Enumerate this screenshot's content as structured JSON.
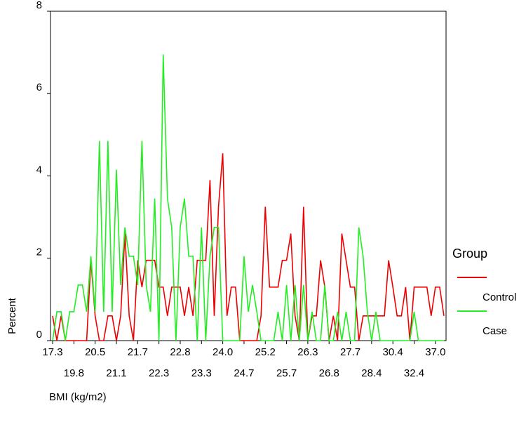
{
  "chart_data": {
    "type": "line",
    "x_label": "BMI (kg/m2)",
    "y_label": "Percent",
    "legend_title": "Group",
    "legend": "right",
    "categories": [
      "17.3",
      null,
      null,
      null,
      null,
      "19.8",
      null,
      null,
      null,
      null,
      "20.5",
      null,
      null,
      null,
      null,
      "21.1",
      null,
      null,
      null,
      null,
      "21.7",
      null,
      null,
      null,
      null,
      "22.3",
      null,
      null,
      null,
      null,
      "22.8",
      null,
      null,
      null,
      null,
      "23.3",
      null,
      null,
      null,
      null,
      "24.0",
      null,
      null,
      null,
      null,
      "24.7",
      null,
      null,
      null,
      null,
      "25.2",
      null,
      null,
      null,
      null,
      "25.7",
      null,
      null,
      null,
      null,
      "26.3",
      null,
      null,
      null,
      null,
      "26.8",
      null,
      null,
      null,
      null,
      "27.7",
      null,
      null,
      null,
      null,
      "28.4",
      null,
      null,
      null,
      null,
      "30.4",
      null,
      null,
      null,
      null,
      "32.4",
      null,
      null,
      null,
      null,
      "37.0",
      null,
      null
    ],
    "series": [
      {
        "name": "Control",
        "color": "#ee0000",
        "values": [
          0.6,
          0,
          0.6,
          0,
          0,
          0,
          0,
          0,
          0,
          1.95,
          0.6,
          0,
          0,
          0.6,
          0.6,
          0,
          0.6,
          2.6,
          0.6,
          0,
          1.95,
          1.3,
          1.95,
          1.95,
          1.95,
          1.3,
          1.3,
          0.6,
          1.3,
          1.3,
          1.3,
          0.6,
          1.3,
          0.6,
          1.95,
          1.95,
          1.95,
          3.9,
          0.6,
          3.25,
          4.55,
          0.6,
          1.3,
          1.3,
          0,
          0,
          0,
          0,
          0,
          0.6,
          3.25,
          1.3,
          1.3,
          1.3,
          1.95,
          1.95,
          2.6,
          0.6,
          0,
          3.25,
          0,
          0.6,
          0.6,
          1.95,
          1.3,
          0,
          0.6,
          0,
          2.6,
          1.95,
          1.3,
          1.3,
          0,
          0.6,
          0.6,
          0.6,
          0.6,
          0.6,
          0.6,
          1.95,
          1.3,
          0.6,
          0.6,
          1.3,
          0,
          1.3,
          1.3,
          1.3,
          1.3,
          0.6,
          1.3,
          1.3,
          0.6
        ]
      },
      {
        "name": "Case",
        "color": "#22ee22",
        "values": [
          0,
          0.7,
          0.7,
          0,
          0.7,
          0.7,
          1.35,
          1.35,
          0.7,
          2.05,
          0.7,
          4.85,
          0.7,
          4.85,
          0.7,
          4.15,
          1.35,
          2.75,
          2.05,
          2.05,
          1.35,
          4.85,
          1.35,
          0.7,
          3.45,
          0,
          6.95,
          3.45,
          2.75,
          0,
          2.75,
          3.45,
          2.05,
          2.05,
          0,
          2.75,
          0,
          2.05,
          2.75,
          2.75,
          0,
          0,
          0,
          0,
          0,
          2.05,
          0.7,
          1.35,
          0.7,
          0,
          0,
          0,
          0,
          0.7,
          0,
          1.35,
          0,
          1.35,
          0,
          1.35,
          0,
          0.7,
          0,
          0,
          1.35,
          0,
          0,
          0.7,
          0,
          0.7,
          0,
          0,
          2.75,
          2.05,
          0.7,
          0,
          0.7,
          0,
          0,
          0,
          0,
          0,
          0,
          0,
          0,
          0.7,
          0,
          0,
          0,
          0,
          0,
          0,
          0
        ]
      }
    ],
    "ylim": [
      0,
      8
    ],
    "yticks": [
      0,
      2,
      4,
      6,
      8
    ]
  }
}
